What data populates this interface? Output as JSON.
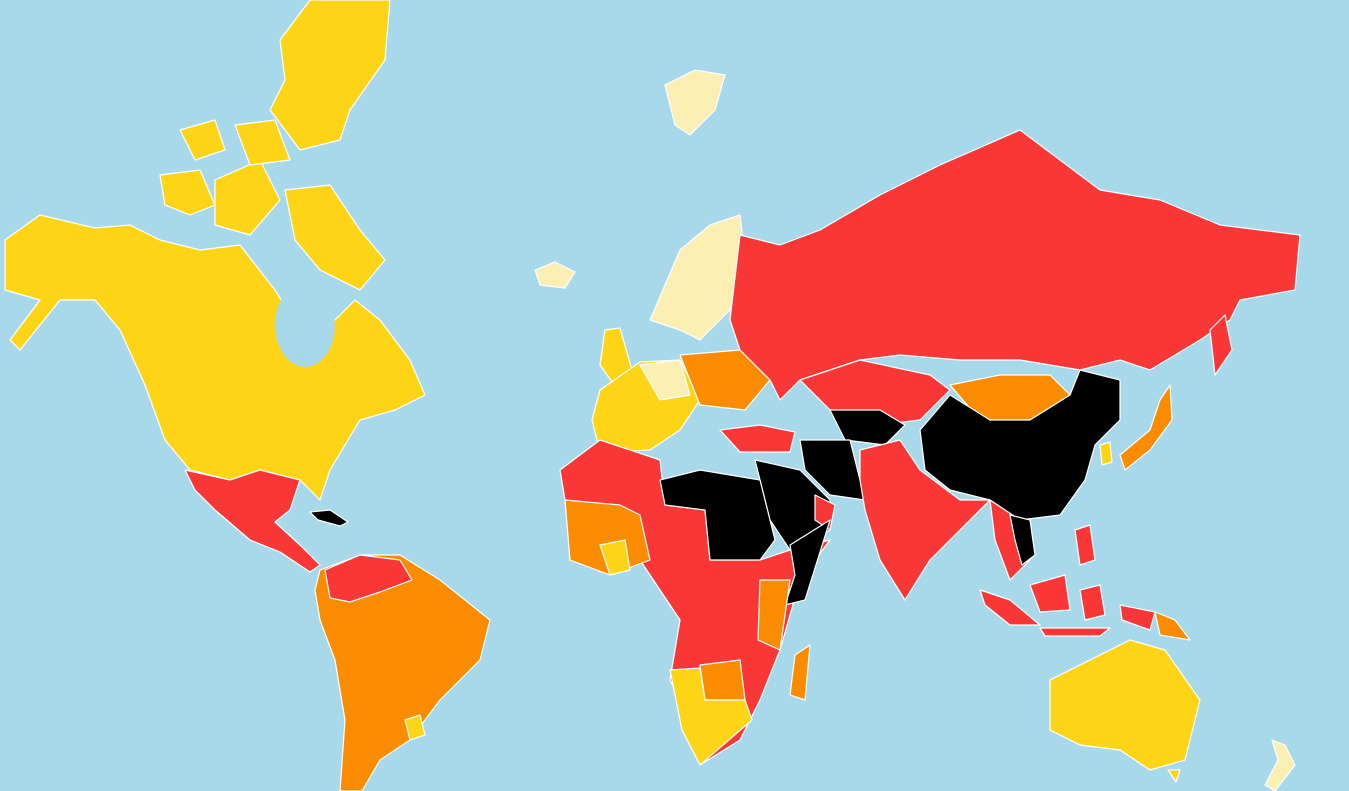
{
  "map": {
    "ocean_color": "#a8d9eb",
    "border_color": "#ffffff",
    "palette": {
      "cream": "#fbefb4",
      "yellow": "#fdd516",
      "orange": "#fb8c00",
      "red": "#f93737",
      "black": "#000000"
    }
  }
}
